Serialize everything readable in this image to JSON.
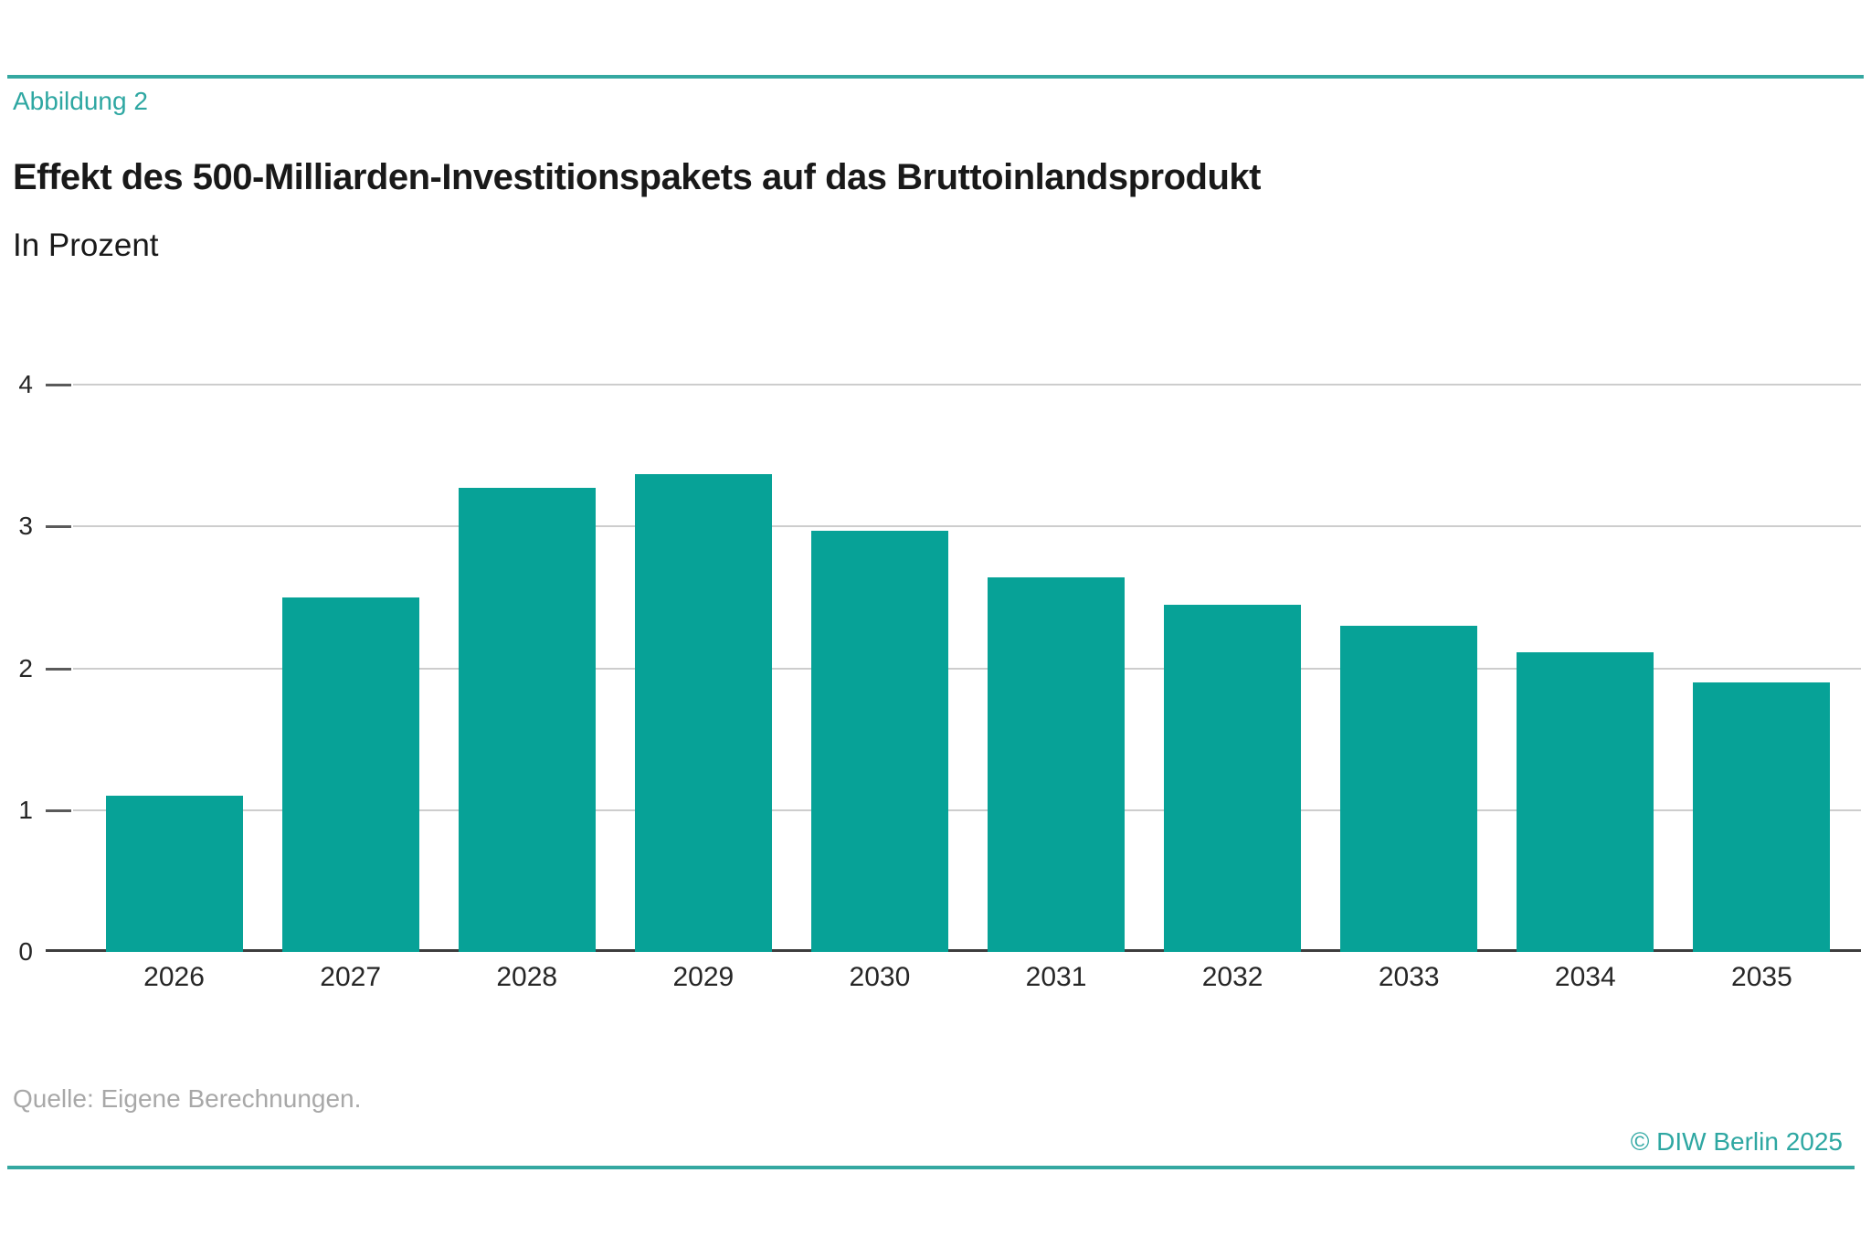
{
  "header": {
    "figure_label": "Abbildung 2",
    "title": "Effekt des 500-Milliarden-Investitionspakets auf das Bruttoinlandsprodukt",
    "subtitle": "In Prozent"
  },
  "chart_data": {
    "type": "bar",
    "title": "Effekt des 500-Milliarden-Investitionspakets auf das Bruttoinlandsprodukt",
    "subtitle": "In Prozent",
    "categories": [
      "2026",
      "2027",
      "2028",
      "2029",
      "2030",
      "2031",
      "2032",
      "2033",
      "2034",
      "2035"
    ],
    "values": [
      1.1,
      2.5,
      3.27,
      3.37,
      2.97,
      2.64,
      2.45,
      2.3,
      2.11,
      1.9
    ],
    "xlabel": "",
    "ylabel": "",
    "ylim": [
      0,
      4
    ],
    "y_ticks": [
      0,
      1,
      2,
      3,
      4
    ],
    "grid": true,
    "legend": "none"
  },
  "footer": {
    "source": "Quelle: Eigene Berechnungen.",
    "copyright": "© DIW Berlin 2025"
  },
  "colors": {
    "accent": "#35a8a1",
    "accent_text": "#2ea7a2",
    "bar": "#07a297",
    "gridline": "#cdcdcd",
    "tick": "#5a5a5a",
    "axis": "#3d3d3d",
    "label_text": "#262626",
    "source_text": "#a8a8a8"
  }
}
